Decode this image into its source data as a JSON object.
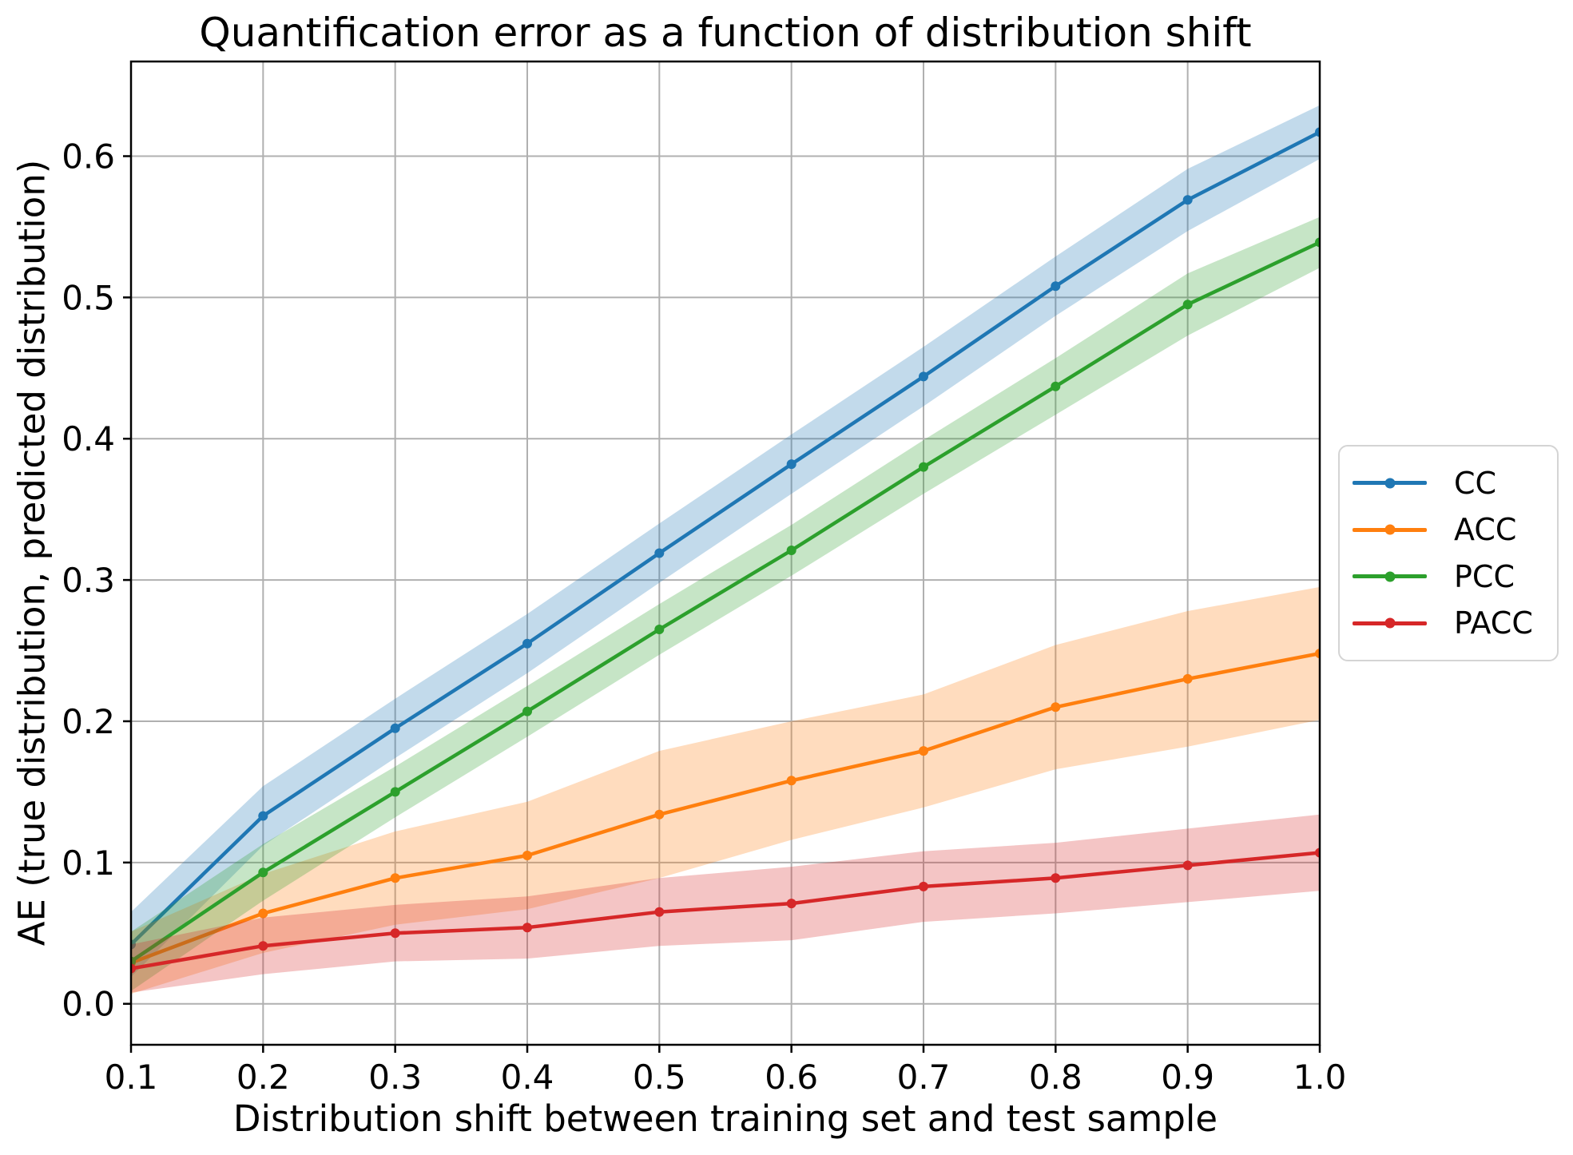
{
  "chart_data": {
    "type": "line",
    "title": "Quantification error as a function of distribution shift",
    "xlabel": "Distribution shift between training set and test sample",
    "ylabel": "AE (true distribution, predicted distribution)",
    "x": [
      0.1,
      0.2,
      0.3,
      0.4,
      0.5,
      0.6,
      0.7,
      0.8,
      0.9,
      1.0
    ],
    "x_tick_labels": [
      "0.1",
      "0.2",
      "0.3",
      "0.4",
      "0.5",
      "0.6",
      "0.7",
      "0.8",
      "0.9",
      "1.0"
    ],
    "y_ticks": [
      0.0,
      0.1,
      0.2,
      0.3,
      0.4,
      0.5,
      0.6
    ],
    "y_tick_labels": [
      "0.0",
      "0.1",
      "0.2",
      "0.3",
      "0.4",
      "0.5",
      "0.6"
    ],
    "xlim": [
      0.1,
      1.0
    ],
    "ylim": [
      -0.029,
      0.667
    ],
    "grid": true,
    "grid_color": "#b0b0b0",
    "legend_position": "outside-right",
    "band_opacity": 0.27,
    "series": [
      {
        "name": "CC",
        "color": "#1f77b4",
        "values": [
          0.042,
          0.133,
          0.195,
          0.255,
          0.319,
          0.382,
          0.444,
          0.508,
          0.569,
          0.617
        ],
        "band_halfwidth": [
          0.023,
          0.021,
          0.021,
          0.021,
          0.021,
          0.021,
          0.021,
          0.021,
          0.022,
          0.019
        ]
      },
      {
        "name": "ACC",
        "color": "#ff7f0e",
        "values": [
          0.029,
          0.064,
          0.089,
          0.105,
          0.134,
          0.158,
          0.179,
          0.21,
          0.23,
          0.248
        ],
        "band_halfwidth": [
          0.022,
          0.028,
          0.033,
          0.038,
          0.045,
          0.042,
          0.04,
          0.044,
          0.048,
          0.047
        ]
      },
      {
        "name": "PCC",
        "color": "#2ca02c",
        "values": [
          0.03,
          0.093,
          0.15,
          0.207,
          0.265,
          0.321,
          0.38,
          0.437,
          0.495,
          0.539
        ],
        "band_halfwidth": [
          0.021,
          0.02,
          0.018,
          0.018,
          0.018,
          0.018,
          0.019,
          0.02,
          0.022,
          0.018
        ]
      },
      {
        "name": "PACC",
        "color": "#d62728",
        "values": [
          0.025,
          0.041,
          0.05,
          0.054,
          0.065,
          0.071,
          0.083,
          0.089,
          0.098,
          0.107
        ],
        "band_halfwidth": [
          0.017,
          0.02,
          0.02,
          0.022,
          0.024,
          0.026,
          0.025,
          0.025,
          0.026,
          0.027
        ]
      }
    ]
  }
}
